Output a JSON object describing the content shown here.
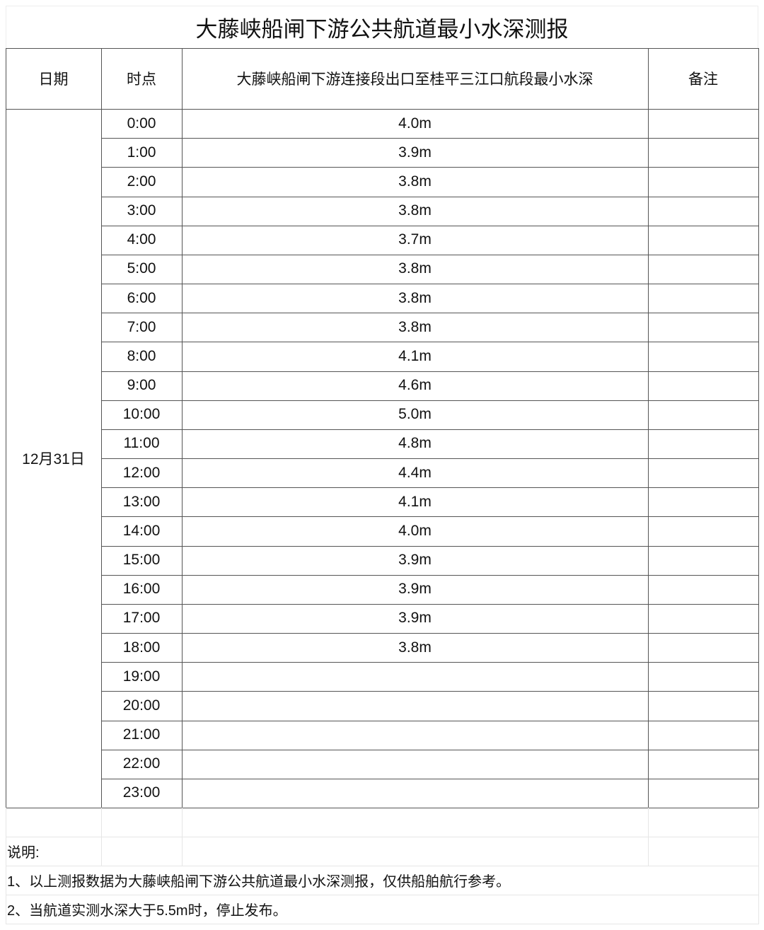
{
  "title": "大藤峡船闸下游公共航道最小水深测报",
  "headers": {
    "date": "日期",
    "time": "时点",
    "depth": "大藤峡船闸下游连接段出口至桂平三江口航段最小水深",
    "remark": "备注"
  },
  "date": "12月31日",
  "rows": [
    {
      "time": "0:00",
      "depth": "4.0m"
    },
    {
      "time": "1:00",
      "depth": "3.9m"
    },
    {
      "time": "2:00",
      "depth": "3.8m"
    },
    {
      "time": "3:00",
      "depth": "3.8m"
    },
    {
      "time": "4:00",
      "depth": "3.7m"
    },
    {
      "time": "5:00",
      "depth": "3.8m"
    },
    {
      "time": "6:00",
      "depth": "3.8m"
    },
    {
      "time": "7:00",
      "depth": "3.8m"
    },
    {
      "time": "8:00",
      "depth": "4.1m"
    },
    {
      "time": "9:00",
      "depth": "4.6m"
    },
    {
      "time": "10:00",
      "depth": "5.0m"
    },
    {
      "time": "11:00",
      "depth": "4.8m"
    },
    {
      "time": "12:00",
      "depth": "4.4m"
    },
    {
      "time": "13:00",
      "depth": "4.1m"
    },
    {
      "time": "14:00",
      "depth": "4.0m"
    },
    {
      "time": "15:00",
      "depth": "3.9m"
    },
    {
      "time": "16:00",
      "depth": "3.9m"
    },
    {
      "time": "17:00",
      "depth": "3.9m"
    },
    {
      "time": "18:00",
      "depth": "3.8m"
    },
    {
      "time": "19:00",
      "depth": ""
    },
    {
      "time": "20:00",
      "depth": ""
    },
    {
      "time": "21:00",
      "depth": ""
    },
    {
      "time": "22:00",
      "depth": ""
    },
    {
      "time": "23:00",
      "depth": ""
    }
  ],
  "notes": {
    "heading": "说明:",
    "items": [
      "1、以上测报数据为大藤峡船闸下游公共航道最小水深测报，仅供船舶航行参考。",
      "2、当航道实测水深大于5.5m时，停止发布。"
    ]
  }
}
